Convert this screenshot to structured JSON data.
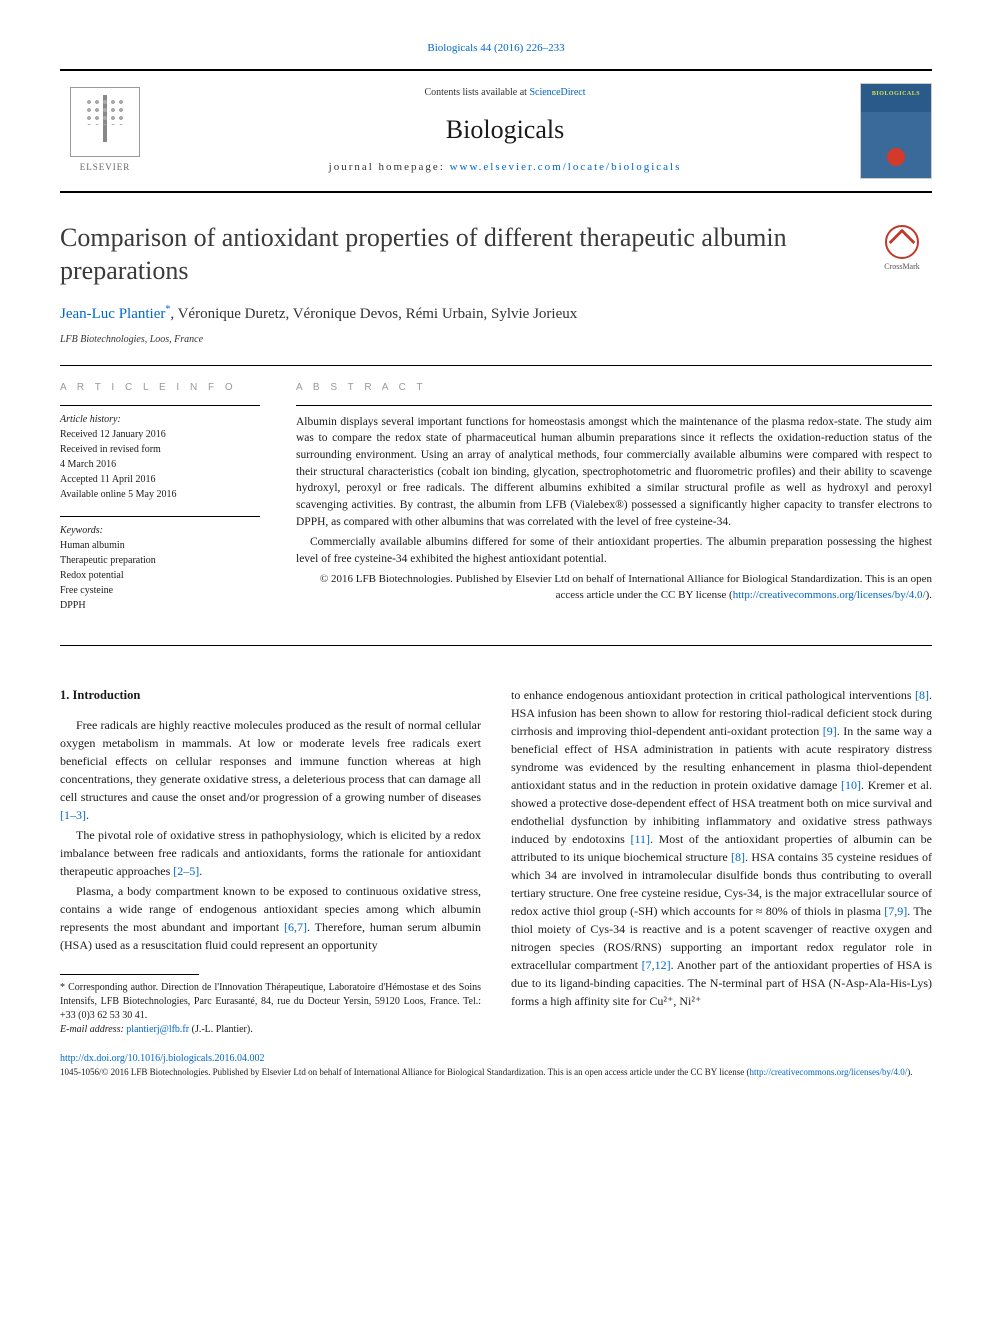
{
  "citation_top": "Biologicals 44 (2016) 226–233",
  "header": {
    "contents_prefix": "Contents lists available at ",
    "contents_link": "ScienceDirect",
    "journal": "Biologicals",
    "homepage_prefix": "journal homepage: ",
    "homepage_url": "www.elsevier.com/locate/biologicals",
    "elsevier": "ELSEVIER"
  },
  "title": "Comparison of antioxidant properties of different therapeutic albumin preparations",
  "crossmark_label": "CrossMark",
  "authors": {
    "lead": "Jean-Luc Plantier",
    "star": "*",
    "others": ", Véronique Duretz, Véronique Devos, Rémi Urbain, Sylvie Jorieux"
  },
  "affiliation": "LFB Biotechnologies, Loos, France",
  "info": {
    "heading": "A R T I C L E   I N F O",
    "history_label": "Article history:",
    "received": "Received 12 January 2016",
    "revised1": "Received in revised form",
    "revised2": "4 March 2016",
    "accepted": "Accepted 11 April 2016",
    "online": "Available online 5 May 2016",
    "keywords_label": "Keywords:",
    "kw1": "Human albumin",
    "kw2": "Therapeutic preparation",
    "kw3": "Redox potential",
    "kw4": "Free cysteine",
    "kw5": "DPPH"
  },
  "abstract": {
    "heading": "A B S T R A C T",
    "p1": "Albumin displays several important functions for homeostasis amongst which the maintenance of the plasma redox-state. The study aim was to compare the redox state of pharmaceutical human albumin preparations since it reflects the oxidation-reduction status of the surrounding environment. Using an array of analytical methods, four commercially available albumins were compared with respect to their structural characteristics (cobalt ion binding, glycation, spectrophotometric and fluorometric profiles) and their ability to scavenge hydroxyl, peroxyl or free radicals. The different albumins exhibited a similar structural profile as well as hydroxyl and peroxyl scavenging activities. By contrast, the albumin from LFB (Vialebex®) possessed a significantly higher capacity to transfer electrons to DPPH, as compared with other albumins that was correlated with the level of free cysteine-34.",
    "p2": "Commercially available albumins differed for some of their antioxidant properties. The albumin preparation possessing the highest level of free cysteine-34 exhibited the highest antioxidant potential.",
    "copyright_pre": "© 2016 LFB Biotechnologies. Published by Elsevier Ltd on behalf of International Alliance for Biological Standardization. This is an open access article under the CC BY license (",
    "copyright_link": "http://creativecommons.org/licenses/by/4.0/",
    "copyright_post": ")."
  },
  "intro": {
    "heading": "1. Introduction",
    "p1a": "Free radicals are highly reactive molecules produced as the result of normal cellular oxygen metabolism in mammals. At low or moderate levels free radicals exert beneficial effects on cellular responses and immune function whereas at high concentrations, they generate oxidative stress, a deleterious process that can damage all cell structures and cause the onset and/or progression of a growing number of diseases ",
    "ref1": "[1–3]",
    "p1b": ".",
    "p2a": "The pivotal role of oxidative stress in pathophysiology, which is elicited by a redox imbalance between free radicals and antioxidants, forms the rationale for antioxidant therapeutic approaches ",
    "ref2": "[2–5]",
    "p2b": ".",
    "p3a": "Plasma, a body compartment known to be exposed to continuous oxidative stress, contains a wide range of endogenous antioxidant species among which albumin represents the most abundant and important ",
    "ref3": "[6,7]",
    "p3b": ". Therefore, human serum albumin (HSA) used as a resuscitation fluid could represent an opportunity"
  },
  "col2": {
    "p1a": "to enhance endogenous antioxidant protection in critical pathological interventions ",
    "r8": "[8]",
    "p1b": ". HSA infusion has been shown to allow for restoring thiol-radical deficient stock during cirrhosis and improving thiol-dependent anti-oxidant protection ",
    "r9": "[9]",
    "p1c": ". In the same way a beneficial effect of HSA administration in patients with acute respiratory distress syndrome was evidenced by the resulting enhancement in plasma thiol-dependent antioxidant status and in the reduction in protein oxidative damage ",
    "r10": "[10]",
    "p1d": ". Kremer et al. showed a protective dose-dependent effect of HSA treatment both on mice survival and endothelial dysfunction by inhibiting inflammatory and oxidative stress pathways induced by endotoxins ",
    "r11": "[11]",
    "p1e": ". Most of the antioxidant properties of albumin can be attributed to its unique biochemical structure ",
    "r8b": "[8]",
    "p1f": ". HSA contains 35 cysteine residues of which 34 are involved in intramolecular disulfide bonds thus contributing to overall tertiary structure. One free cysteine residue, Cys-34, is the major extracellular source of redox active thiol group (-SH) which accounts for ≈ 80% of thiols in plasma ",
    "r79": "[7,9]",
    "p1g": ". The thiol moiety of Cys-34 is reactive and is a potent scavenger of reactive oxygen and nitrogen species (ROS/RNS) supporting an important redox regulator role in extracellular compartment ",
    "r712": "[7,12]",
    "p1h": ". Another part of the antioxidant properties of HSA is due to its ligand-binding capacities. The N-terminal part of HSA (N-Asp-Ala-His-Lys) forms a high affinity site for Cu²⁺, Ni²⁺"
  },
  "footnote": {
    "corr": "* Corresponding author. Direction de l'Innovation Thérapeutique, Laboratoire d'Hémostase et des Soins Intensifs, LFB Biotechnologies, Parc Eurasanté, 84, rue du Docteur Yersin, 59120 Loos, France. Tel.: +33 (0)3 62 53 30 41.",
    "email_label": "E-mail address: ",
    "email": "plantierj@lfb.fr",
    "email_tail": " (J.-L. Plantier)."
  },
  "doi": "http://dx.doi.org/10.1016/j.biologicals.2016.04.002",
  "bottom_copy_a": "1045-1056/© 2016 LFB Biotechnologies. Published by Elsevier Ltd on behalf of International Alliance for Biological Standardization. This is an open access article under the CC BY license (",
  "bottom_copy_link": "http://creativecommons.org/licenses/by/4.0/",
  "bottom_copy_b": ")."
}
